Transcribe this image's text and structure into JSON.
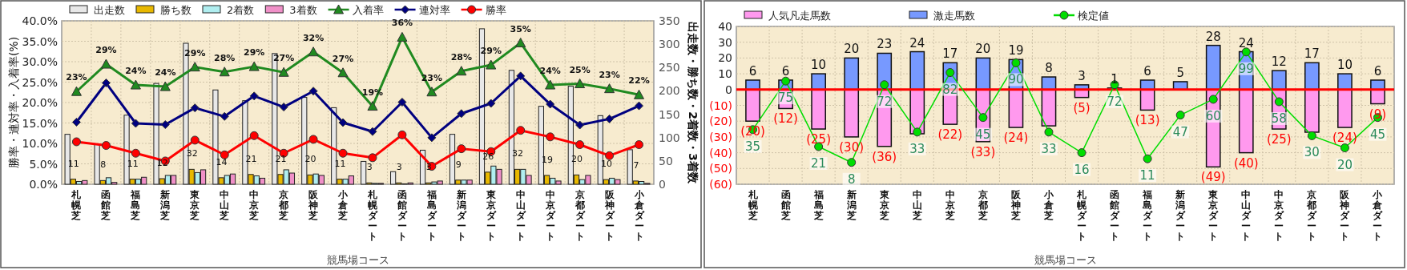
{
  "chart_data": [
    {
      "type": "bar",
      "xlabel": "競馬場コース",
      "ylabel": "勝率・連対率・入着率(%)",
      "y2label": "出走数・勝ち数・2着数・3着数",
      "categories": [
        "札幌芝",
        "函館芝",
        "福島芝",
        "新潟芝",
        "東京芝",
        "中山芝",
        "中京芝",
        "京都芝",
        "阪神芝",
        "小倉芝",
        "札幌ダート",
        "函館ダート",
        "福島ダート",
        "新潟ダート",
        "東京ダート",
        "中山ダート",
        "中京ダート",
        "京都ダート",
        "阪神ダート",
        "小倉ダート"
      ],
      "ylim": [
        0,
        40
      ],
      "yticks": [
        {
          "value": 0,
          "label": "0.0%"
        },
        {
          "value": 5,
          "label": "5.0%"
        },
        {
          "value": 10,
          "label": "10.0%"
        },
        {
          "value": 15,
          "label": "15.0%"
        },
        {
          "value": 20,
          "label": "20.0%"
        },
        {
          "value": 25,
          "label": "25.0%"
        },
        {
          "value": 30,
          "label": "30.0%"
        },
        {
          "value": 35,
          "label": "35.0%"
        },
        {
          "value": 40,
          "label": "40.0%"
        }
      ],
      "y2lim": [
        0,
        350
      ],
      "y2ticks": [
        0,
        50,
        100,
        150,
        200,
        250,
        300,
        350
      ],
      "grid": true,
      "legend": "top",
      "series": [
        {
          "name": "出走数",
          "color": "#e8e8e8",
          "axis": "y2",
          "values": [
            107,
            86,
            148,
            216,
            302,
            202,
            179,
            280,
            186,
            164,
            49,
            27,
            73,
            107,
            333,
            244,
            167,
            210,
            147,
            74
          ]
        },
        {
          "name": "勝ち数",
          "color": "#e8b800",
          "axis": "y2",
          "values": [
            11,
            8,
            11,
            12,
            32,
            14,
            21,
            21,
            20,
            11,
            3,
            3,
            3,
            9,
            26,
            32,
            19,
            20,
            10,
            7
          ],
          "value_labels": [
            "11",
            "8",
            "11",
            "12",
            "32",
            "14",
            "21",
            "21",
            "20",
            "11",
            "3",
            "3",
            "3",
            "9",
            "26",
            "32",
            "19",
            "20",
            "10",
            "7"
          ]
        },
        {
          "name": "2着数",
          "color": "#b0eef0",
          "axis": "y2",
          "values": [
            6,
            14,
            11,
            19,
            25,
            19,
            18,
            31,
            22,
            11,
            2,
            1,
            5,
            9,
            39,
            32,
            13,
            10,
            13,
            6
          ]
        },
        {
          "name": "3着数",
          "color": "#f090c8",
          "axis": "y2",
          "values": [
            8,
            4,
            15,
            19,
            31,
            22,
            13,
            24,
            19,
            18,
            2,
            3,
            7,
            9,
            32,
            19,
            7,
            19,
            10,
            2
          ]
        },
        {
          "name": "入着率",
          "type": "line",
          "color": "#208a20",
          "marker": "triangle",
          "values": [
            22.7,
            29.4,
            24.3,
            23.9,
            28.7,
            27.5,
            28.8,
            27.4,
            32.4,
            27.3,
            19.1,
            36.0,
            22.6,
            27.7,
            29.2,
            34.6,
            24.3,
            24.6,
            23.4,
            21.9
          ],
          "value_labels": [
            "23%",
            "29%",
            "24%",
            "24%",
            "29%",
            "28%",
            "29%",
            "27%",
            "32%",
            "27%",
            "19%",
            "36%",
            "23%",
            "28%",
            "29%",
            "35%",
            "24%",
            "25%",
            "23%",
            "22%"
          ]
        },
        {
          "name": "連対率",
          "type": "line",
          "color": "#000080",
          "marker": "diamond",
          "values": [
            15.2,
            24.8,
            14.9,
            14.6,
            18.7,
            16.6,
            21.6,
            18.9,
            22.8,
            15.1,
            12.9,
            20.1,
            11.4,
            17.3,
            19.8,
            26.5,
            19.6,
            14.5,
            16.0,
            19.2
          ]
        },
        {
          "name": "勝率",
          "type": "line",
          "color": "#ff0000",
          "marker": "circle",
          "values": [
            10.4,
            9.5,
            7.6,
            5.7,
            10.8,
            7.2,
            11.9,
            7.6,
            11.0,
            7.6,
            6.5,
            12.1,
            4.4,
            8.7,
            8.0,
            13.2,
            11.6,
            9.7,
            7.0,
            9.7
          ]
        }
      ]
    },
    {
      "type": "bar",
      "stacked": true,
      "xlabel": "競馬場コース",
      "categories": [
        "札幌芝",
        "函館芝",
        "福島芝",
        "新潟芝",
        "東京芝",
        "中山芝",
        "中京芝",
        "京都芝",
        "阪神芝",
        "小倉芝",
        "札幌ダート",
        "函館ダート",
        "福島ダート",
        "新潟ダート",
        "東京ダート",
        "中山ダート",
        "中京ダート",
        "京都ダート",
        "阪神ダート",
        "小倉ダート"
      ],
      "ylim": [
        -60,
        40
      ],
      "yticks": [
        {
          "value": -60,
          "label": "(60)"
        },
        {
          "value": -50,
          "label": "(50)"
        },
        {
          "value": -40,
          "label": "(40)"
        },
        {
          "value": -30,
          "label": "(30)"
        },
        {
          "value": -20,
          "label": "(20)"
        },
        {
          "value": -10,
          "label": "(10)"
        },
        0,
        10,
        20,
        30,
        40
      ],
      "y2lim": [
        -10,
        120
      ],
      "tick_labels": [
        "x",
        "y"
      ],
      "grid": true,
      "legend": "top",
      "ref_lines": [
        {
          "axis": "y",
          "value": 0,
          "color": "#ff0000"
        }
      ],
      "series": [
        {
          "name": "人気凡走馬数",
          "color": "#ff99ee",
          "values": [
            -20,
            -12,
            -25,
            -30,
            -36,
            -28,
            -22,
            -33,
            -24,
            -23,
            -5,
            null,
            -13,
            null,
            -49,
            -40,
            -25,
            -27,
            -24,
            -9
          ],
          "value_labels": [
            "(20)",
            "(12)",
            "(25)",
            "(30)",
            "(36)",
            null,
            "(22)",
            "(33)",
            "(24)",
            null,
            "(5)",
            null,
            "(13)",
            null,
            "(49)",
            "(40)",
            "(25)",
            null,
            "(24)",
            "(9)"
          ]
        },
        {
          "name": "激走馬数",
          "color": "#7799ff",
          "values": [
            6,
            6,
            10,
            20,
            23,
            24,
            17,
            20,
            19,
            8,
            3,
            1,
            6,
            5,
            28,
            24,
            12,
            17,
            10,
            6
          ],
          "value_labels": [
            "6",
            "6",
            "10",
            "20",
            "23",
            "24",
            "17",
            "20",
            "19",
            "8",
            "3",
            "1",
            "6",
            "5",
            "28",
            "24",
            "12",
            "17",
            "10",
            "6"
          ]
        },
        {
          "name": "検定値",
          "type": "line",
          "axis": "y2",
          "color": "#00dd00",
          "marker": "circle",
          "values": [
            35,
            75,
            21,
            8,
            72,
            33,
            82,
            45,
            90,
            33,
            16,
            72,
            11,
            47,
            60,
            99,
            58,
            30,
            20,
            45
          ],
          "value_labels": [
            "35",
            "75",
            "21",
            "8",
            "72",
            "33",
            "82",
            "45",
            "90",
            "33",
            "16",
            "72",
            "11",
            "47",
            "60",
            "99",
            "58",
            "30",
            "20",
            "45"
          ]
        }
      ]
    }
  ]
}
